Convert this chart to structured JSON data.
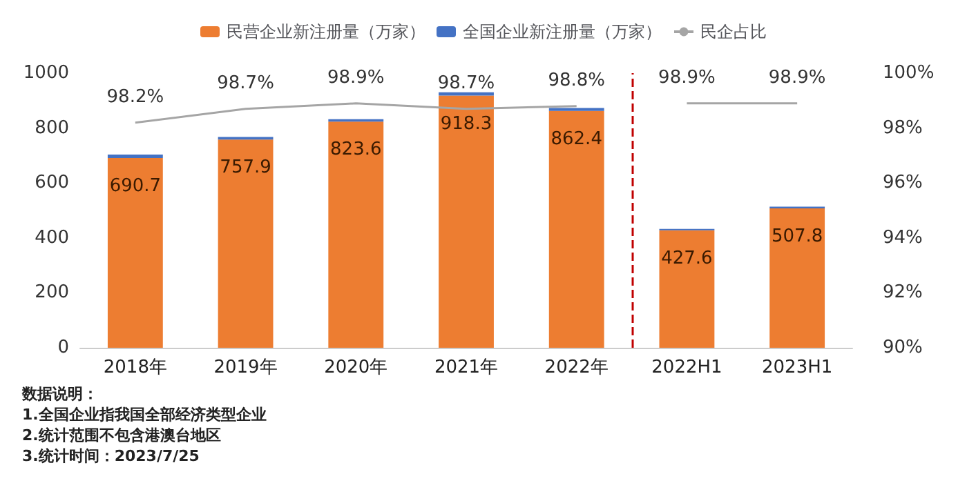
{
  "chart_data": {
    "type": "bar",
    "stacked": true,
    "categories": [
      "2018年",
      "2019年",
      "2020年",
      "2021年",
      "2022年",
      "2022H1",
      "2023H1"
    ],
    "series": [
      {
        "name": "民营企业新注册量（万家）",
        "color": "#ed7d31",
        "values": [
          690.7,
          757.9,
          823.6,
          918.3,
          862.4,
          427.6,
          507.8
        ],
        "value_labels": [
          "690.7",
          "757.9",
          "823.6",
          "918.3",
          "862.4",
          "427.6",
          "507.8"
        ]
      },
      {
        "name": "全国企业新注册量（万家）",
        "color": "#4472c4",
        "values": [
          13,
          10,
          9,
          12,
          11,
          5,
          6
        ]
      },
      {
        "name": "民企占比",
        "type": "line",
        "axis": "y2",
        "color": "#a5a5a5",
        "values": [
          98.2,
          98.7,
          98.9,
          98.7,
          98.8,
          null,
          null
        ],
        "value_labels": [
          "98.2%",
          "98.7%",
          "98.9%",
          "98.7%",
          "98.8%",
          null,
          null
        ]
      },
      {
        "type": "line",
        "axis": "y2",
        "color": "#a5a5a5",
        "values": [
          null,
          null,
          null,
          null,
          null,
          98.9,
          98.9
        ],
        "value_labels": [
          null,
          null,
          null,
          null,
          null,
          "98.9%",
          "98.9%"
        ]
      }
    ],
    "ylim": [
      0,
      1000
    ],
    "yticks": [
      0,
      200,
      400,
      600,
      800,
      1000
    ],
    "y2lim": [
      90,
      100
    ],
    "y2ticks": [
      {
        "value": 90,
        "label": "90%"
      },
      {
        "value": 92,
        "label": "92%"
      },
      {
        "value": 94,
        "label": "94%"
      },
      {
        "value": 96,
        "label": "96%"
      },
      {
        "value": 98,
        "label": "98%"
      },
      {
        "value": 100,
        "label": "100%"
      }
    ],
    "ref_lines": [
      {
        "axis": "x",
        "value": "2022H1",
        "color": "#c00000",
        "line_style": "dashed"
      }
    ],
    "legend": "top",
    "grid": false,
    "annotations": [
      "数据说明：",
      "1.全国企业指我国全部经济类型企业",
      "2.统计范围不包含港澳台地区",
      "3.统计时间：2023/7/25"
    ]
  }
}
